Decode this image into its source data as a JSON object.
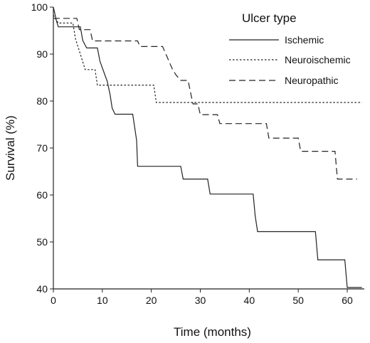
{
  "chart_data": {
    "type": "line",
    "step": true,
    "title": "",
    "xlabel": "Time (months)",
    "ylabel": "Survival (%)",
    "xlim": [
      0,
      63
    ],
    "ylim": [
      40,
      100
    ],
    "xticks": [
      0,
      10,
      20,
      30,
      40,
      50,
      60
    ],
    "yticks": [
      40,
      50,
      60,
      70,
      80,
      90,
      100
    ],
    "grid": false,
    "legend": {
      "title": "Ulcer type",
      "position": "top-right"
    },
    "series": [
      {
        "name": "Ischemic",
        "line_style": "solid",
        "points": [
          [
            0,
            100
          ],
          [
            0.3,
            98.6
          ],
          [
            0.6,
            97.2
          ],
          [
            1,
            95.8
          ],
          [
            5.5,
            95.8
          ],
          [
            6,
            92.9
          ],
          [
            6.8,
            91.3
          ],
          [
            9,
            91.3
          ],
          [
            9.5,
            88.5
          ],
          [
            10.5,
            85.6
          ],
          [
            11,
            84.2
          ],
          [
            11.6,
            81.3
          ],
          [
            12,
            78.5
          ],
          [
            12.6,
            77.2
          ],
          [
            16.2,
            77.2
          ],
          [
            16.6,
            74.4
          ],
          [
            17,
            71.6
          ],
          [
            17.2,
            66.1
          ],
          [
            26,
            66.1
          ],
          [
            26.5,
            63.4
          ],
          [
            31.5,
            63.4
          ],
          [
            32,
            60.2
          ],
          [
            40.8,
            60.2
          ],
          [
            41.2,
            55.6
          ],
          [
            41.7,
            52.2
          ],
          [
            53.5,
            52.2
          ],
          [
            54,
            46.2
          ],
          [
            59.5,
            46.2
          ],
          [
            60,
            40.3
          ],
          [
            63,
            40.3
          ]
        ]
      },
      {
        "name": "Neuroischemic",
        "line_style": "dotted",
        "points": [
          [
            0,
            98.3
          ],
          [
            1,
            96.6
          ],
          [
            4,
            96.6
          ],
          [
            4.5,
            93.3
          ],
          [
            5.5,
            90
          ],
          [
            6.5,
            86.7
          ],
          [
            8.5,
            86.7
          ],
          [
            9,
            83.4
          ],
          [
            20.5,
            83.4
          ],
          [
            21,
            79.7
          ],
          [
            63,
            79.7
          ]
        ]
      },
      {
        "name": "Neuropathic",
        "line_style": "dashed",
        "points": [
          [
            0,
            97.6
          ],
          [
            4.8,
            97.6
          ],
          [
            5.3,
            95.2
          ],
          [
            7.5,
            95.2
          ],
          [
            8,
            92.8
          ],
          [
            17.2,
            92.8
          ],
          [
            17.7,
            91.6
          ],
          [
            22.3,
            91.6
          ],
          [
            22.8,
            90.4
          ],
          [
            23.3,
            89.2
          ],
          [
            23.8,
            88
          ],
          [
            24.3,
            86.8
          ],
          [
            25,
            85.6
          ],
          [
            26,
            84.4
          ],
          [
            27.5,
            84.4
          ],
          [
            28,
            81.9
          ],
          [
            28.5,
            79.4
          ],
          [
            29.5,
            79.4
          ],
          [
            30,
            77.1
          ],
          [
            33.5,
            77.1
          ],
          [
            34,
            75.2
          ],
          [
            43.5,
            75.2
          ],
          [
            44,
            72.1
          ],
          [
            50,
            72.1
          ],
          [
            50.5,
            69.3
          ],
          [
            57.5,
            69.3
          ],
          [
            58,
            63.4
          ],
          [
            62,
            63.4
          ]
        ]
      }
    ]
  }
}
